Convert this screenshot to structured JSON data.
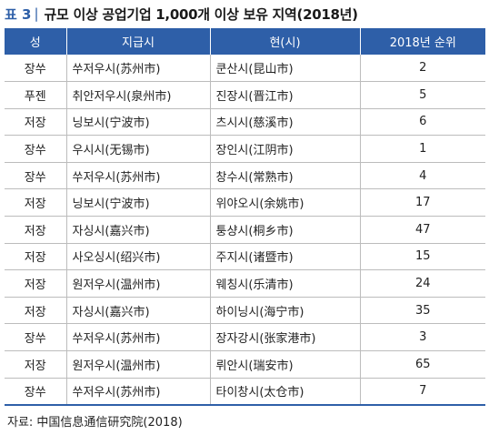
{
  "caption": {
    "label": "표 3",
    "separator": "|",
    "title": "규모 이상 공업기업 1,000개 이상 보유 지역(2018년)"
  },
  "table": {
    "headers": [
      "성",
      "지급시",
      "현(시)",
      "2018년 순위"
    ],
    "rows": [
      [
        "장쑤",
        "쑤저우시(苏州市)",
        "쿤산시(昆山市)",
        "2"
      ],
      [
        "푸젠",
        "취안저우시(泉州市)",
        "진장시(晋江市)",
        "5"
      ],
      [
        "저장",
        "닝보시(宁波市)",
        "츠시시(慈溪市)",
        "6"
      ],
      [
        "장쑤",
        "우시시(无锡市)",
        "장인시(江阴市)",
        "1"
      ],
      [
        "장쑤",
        "쑤저우시(苏州市)",
        "창수시(常熟市)",
        "4"
      ],
      [
        "저장",
        "닝보시(宁波市)",
        "위야오시(余姚市)",
        "17"
      ],
      [
        "저장",
        "자싱시(嘉兴市)",
        "퉁샹시(桐乡市)",
        "47"
      ],
      [
        "저장",
        "사오싱시(绍兴市)",
        "주지시(诸暨市)",
        "15"
      ],
      [
        "저장",
        "원저우시(温州市)",
        "웨칭시(乐清市)",
        "24"
      ],
      [
        "저장",
        "자싱시(嘉兴市)",
        "하이닝시(海宁市)",
        "35"
      ],
      [
        "장쑤",
        "쑤저우시(苏州市)",
        "장자강시(张家港市)",
        "3"
      ],
      [
        "저장",
        "원저우시(温州市)",
        "뤼안시(瑞安市)",
        "65"
      ],
      [
        "장쑤",
        "쑤저우시(苏州市)",
        "타이창시(太仓市)",
        "7"
      ]
    ]
  },
  "source": "자료: 中国信息通信研究院(2018)"
}
